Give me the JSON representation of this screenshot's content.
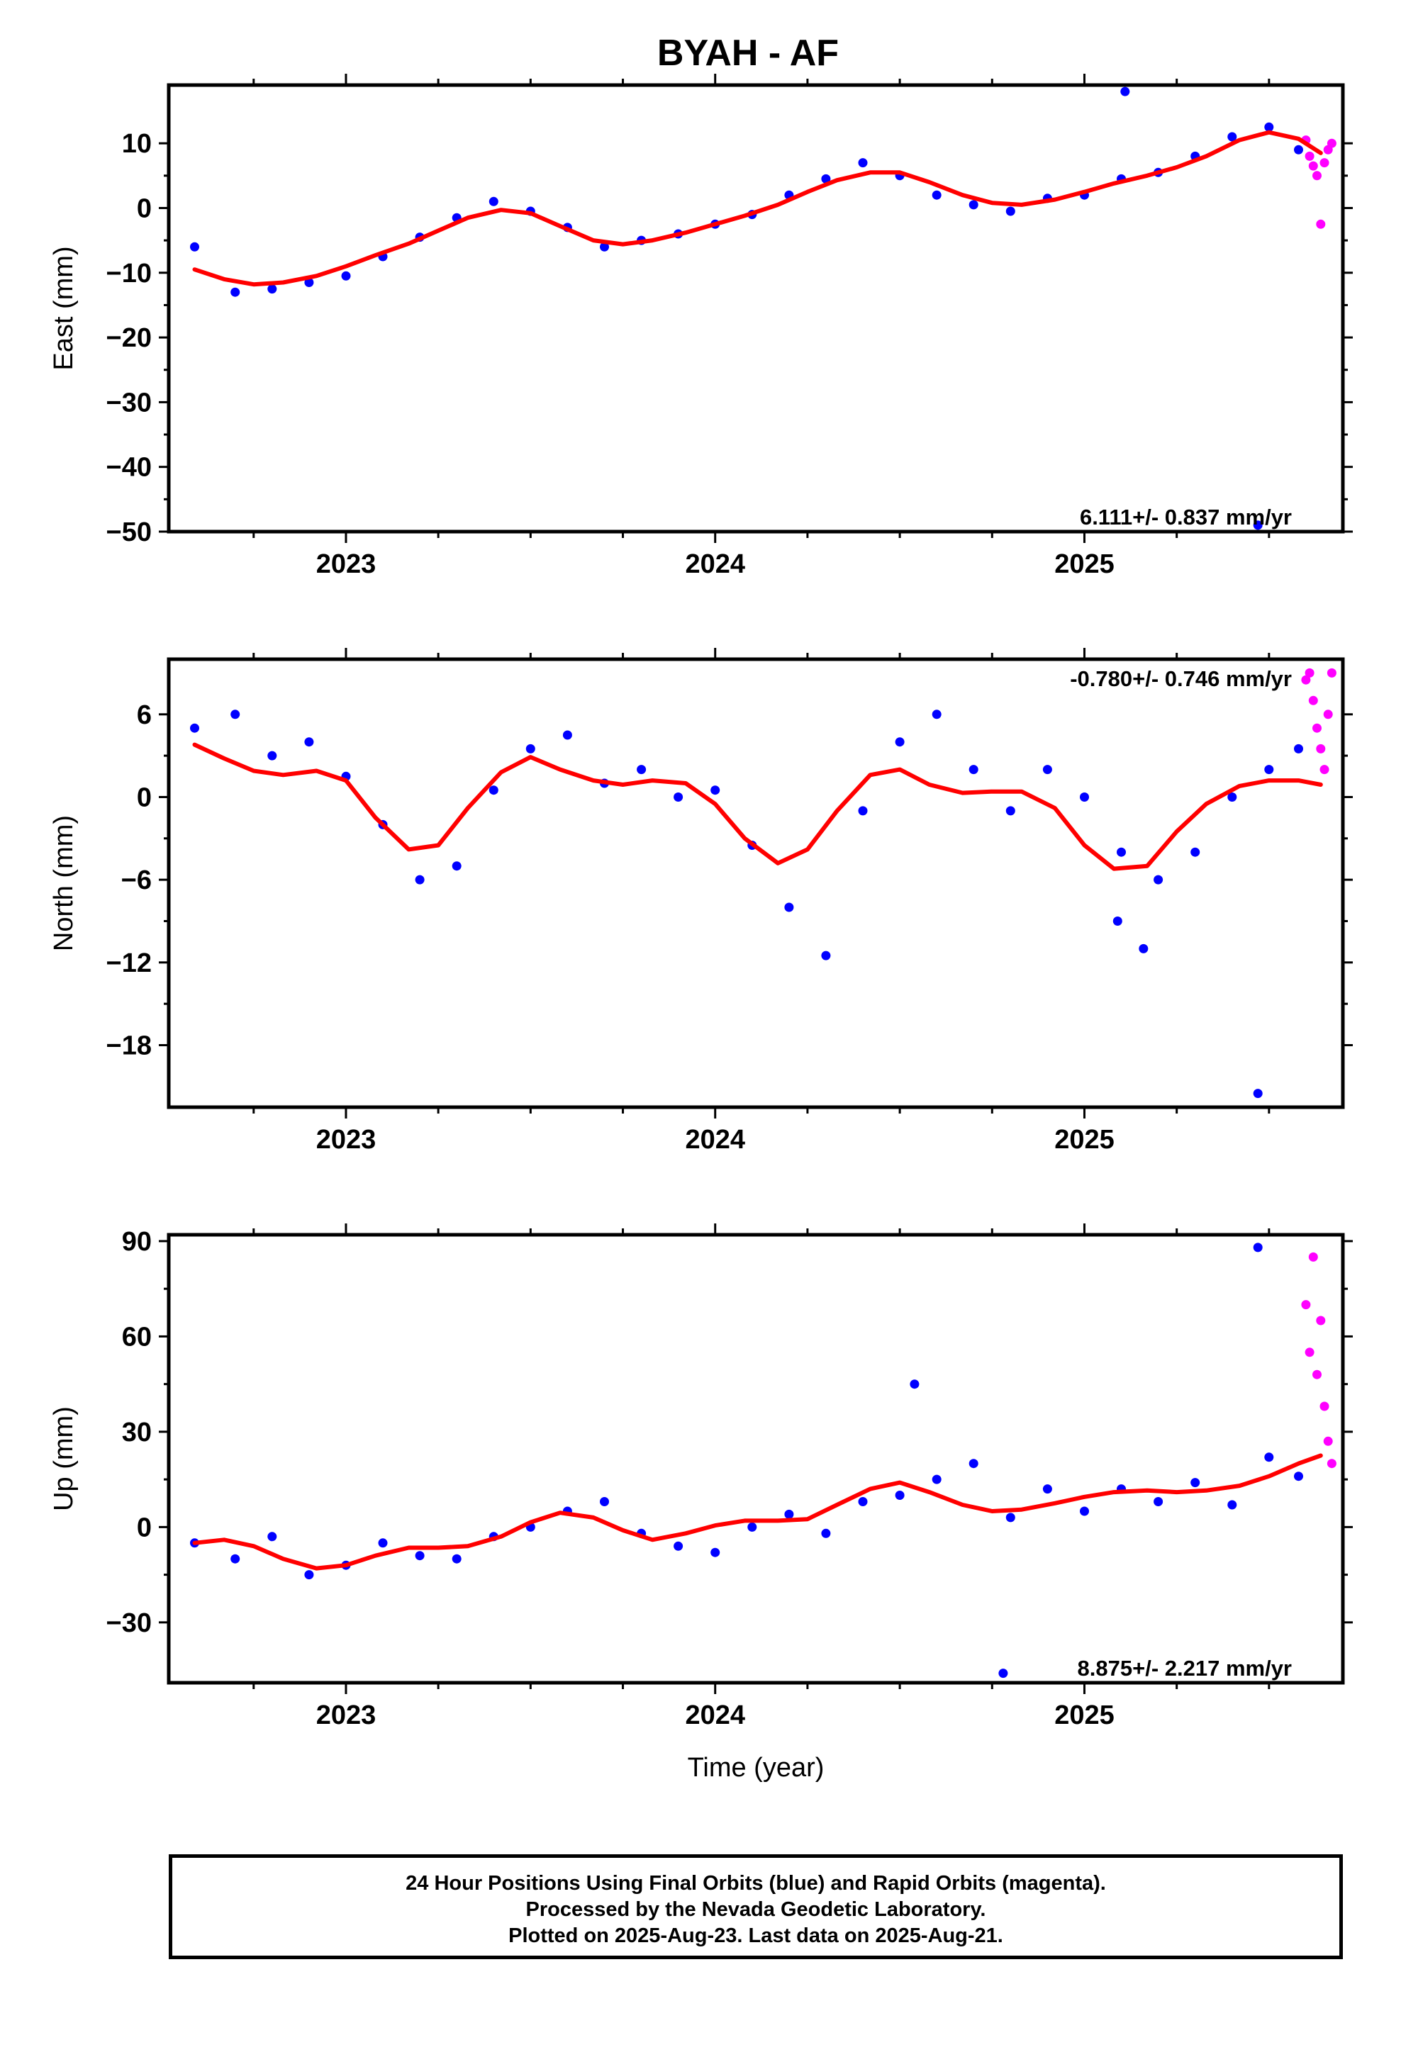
{
  "title": "BYAH - AF",
  "colors": {
    "final": "#0000ff",
    "rapid": "#ff00ff",
    "model": "#ff0000"
  },
  "footer": {
    "line1": "24 Hour Positions Using Final Orbits (blue) and Rapid Orbits (magenta).",
    "line2": "Processed by the Nevada Geodetic Laboratory.",
    "line3": "Plotted on 2025-Aug-23. Last data on 2025-Aug-21."
  },
  "chart_data": [
    {
      "type": "scatter",
      "title": "BYAH - AF",
      "ylabel": "East (mm)",
      "xlabel": "",
      "xlim": [
        2022.52,
        2025.7
      ],
      "ylim": [
        -50,
        19
      ],
      "yticks": [
        -50,
        -40,
        -30,
        -20,
        -10,
        0,
        10
      ],
      "xticks": [
        2023,
        2024,
        2025
      ],
      "rate_label": "6.111+/- 0.837 mm/yr",
      "rate_position": "bottom-right",
      "series": [
        {
          "kind": "model",
          "x": [
            2022.59,
            2022.67,
            2022.75,
            2022.83,
            2022.92,
            2023.0,
            2023.08,
            2023.17,
            2023.25,
            2023.33,
            2023.42,
            2023.5,
            2023.58,
            2023.67,
            2023.75,
            2023.83,
            2023.92,
            2024.0,
            2024.08,
            2024.17,
            2024.25,
            2024.33,
            2024.42,
            2024.5,
            2024.58,
            2024.67,
            2024.75,
            2024.83,
            2024.92,
            2025.0,
            2025.08,
            2025.17,
            2025.25,
            2025.33,
            2025.42,
            2025.5,
            2025.58,
            2025.64
          ],
          "y": [
            -9.5,
            -11.0,
            -11.8,
            -11.5,
            -10.5,
            -9.0,
            -7.3,
            -5.5,
            -3.5,
            -1.5,
            -0.3,
            -0.8,
            -2.8,
            -5.0,
            -5.6,
            -5.0,
            -3.8,
            -2.5,
            -1.2,
            0.5,
            2.5,
            4.3,
            5.5,
            5.5,
            4.0,
            2.0,
            0.8,
            0.5,
            1.3,
            2.5,
            3.8,
            5.0,
            6.3,
            8.0,
            10.5,
            11.7,
            10.7,
            8.5
          ]
        },
        {
          "kind": "final",
          "x": [
            2022.59,
            2022.7,
            2022.8,
            2022.9,
            2023.0,
            2023.1,
            2023.2,
            2023.3,
            2023.4,
            2023.5,
            2023.6,
            2023.7,
            2023.8,
            2023.9,
            2024.0,
            2024.1,
            2024.2,
            2024.3,
            2024.4,
            2024.5,
            2024.6,
            2024.7,
            2024.8,
            2024.9,
            2025.0,
            2025.1,
            2025.2,
            2025.3,
            2025.4,
            2025.5,
            2025.58,
            2025.11,
            2025.47
          ],
          "y": [
            -6.0,
            -13.0,
            -12.5,
            -11.5,
            -10.5,
            -7.5,
            -4.5,
            -1.5,
            1.0,
            -0.5,
            -3.0,
            -6.0,
            -5.0,
            -4.0,
            -2.5,
            -1.0,
            2.0,
            4.5,
            7.0,
            5.0,
            2.0,
            0.5,
            -0.5,
            1.5,
            2.0,
            4.5,
            5.5,
            8.0,
            11.0,
            12.5,
            9.0,
            18.0,
            -49.0
          ]
        },
        {
          "kind": "rapid",
          "x": [
            2025.6,
            2025.61,
            2025.62,
            2025.63,
            2025.64,
            2025.65,
            2025.66,
            2025.67
          ],
          "y": [
            10.5,
            8.0,
            6.5,
            5.0,
            -2.5,
            7.0,
            9.0,
            10.0
          ]
        }
      ]
    },
    {
      "type": "scatter",
      "ylabel": "North (mm)",
      "xlabel": "",
      "xlim": [
        2022.52,
        2025.7
      ],
      "ylim": [
        -22.5,
        10
      ],
      "yticks": [
        -18,
        -12,
        -6,
        0,
        6
      ],
      "xticks": [
        2023,
        2024,
        2025
      ],
      "rate_label": "-0.780+/- 0.746 mm/yr",
      "rate_position": "top-right",
      "series": [
        {
          "kind": "model",
          "x": [
            2022.59,
            2022.67,
            2022.75,
            2022.83,
            2022.92,
            2023.0,
            2023.08,
            2023.17,
            2023.25,
            2023.33,
            2023.42,
            2023.5,
            2023.58,
            2023.67,
            2023.75,
            2023.83,
            2023.92,
            2024.0,
            2024.08,
            2024.17,
            2024.25,
            2024.33,
            2024.42,
            2024.5,
            2024.58,
            2024.67,
            2024.75,
            2024.83,
            2024.92,
            2025.0,
            2025.08,
            2025.17,
            2025.25,
            2025.33,
            2025.42,
            2025.5,
            2025.58,
            2025.64
          ],
          "y": [
            3.8,
            2.8,
            1.9,
            1.6,
            1.9,
            1.2,
            -1.5,
            -3.8,
            -3.5,
            -0.8,
            1.8,
            2.9,
            2.0,
            1.2,
            0.9,
            1.2,
            1.0,
            -0.5,
            -3.0,
            -4.8,
            -3.8,
            -1.0,
            1.6,
            2.0,
            0.9,
            0.3,
            0.4,
            0.4,
            -0.8,
            -3.5,
            -5.2,
            -5.0,
            -2.5,
            -0.5,
            0.8,
            1.2,
            1.2,
            0.9
          ]
        },
        {
          "kind": "final",
          "x": [
            2022.59,
            2022.7,
            2022.8,
            2022.9,
            2023.0,
            2023.1,
            2023.2,
            2023.3,
            2023.4,
            2023.5,
            2023.6,
            2023.7,
            2023.8,
            2023.9,
            2024.0,
            2024.1,
            2024.2,
            2024.3,
            2024.4,
            2024.5,
            2024.6,
            2024.7,
            2024.8,
            2024.9,
            2025.0,
            2025.1,
            2025.2,
            2025.3,
            2025.4,
            2025.5,
            2025.58,
            2025.09,
            2025.16,
            2025.47
          ],
          "y": [
            5.0,
            6.0,
            3.0,
            4.0,
            1.5,
            -2.0,
            -6.0,
            -5.0,
            0.5,
            3.5,
            4.5,
            1.0,
            2.0,
            0.0,
            0.5,
            -3.5,
            -8.0,
            -11.5,
            -1.0,
            4.0,
            6.0,
            2.0,
            -1.0,
            2.0,
            0.0,
            -4.0,
            -6.0,
            -4.0,
            0.0,
            2.0,
            3.5,
            -9.0,
            -11.0,
            -21.5
          ]
        },
        {
          "kind": "rapid",
          "x": [
            2025.6,
            2025.61,
            2025.62,
            2025.63,
            2025.64,
            2025.65,
            2025.66,
            2025.67
          ],
          "y": [
            8.5,
            9.0,
            7.0,
            5.0,
            3.5,
            2.0,
            6.0,
            9.0
          ]
        }
      ]
    },
    {
      "type": "scatter",
      "ylabel": "Up (mm)",
      "xlabel": "Time (year)",
      "xlim": [
        2022.52,
        2025.7
      ],
      "ylim": [
        -49,
        92
      ],
      "yticks": [
        -30,
        0,
        30,
        60,
        90
      ],
      "xticks": [
        2023,
        2024,
        2025
      ],
      "rate_label": "8.875+/- 2.217 mm/yr",
      "rate_position": "bottom-right",
      "series": [
        {
          "kind": "model",
          "x": [
            2022.59,
            2022.67,
            2022.75,
            2022.83,
            2022.92,
            2023.0,
            2023.08,
            2023.17,
            2023.25,
            2023.33,
            2023.42,
            2023.5,
            2023.58,
            2023.67,
            2023.75,
            2023.83,
            2023.92,
            2024.0,
            2024.08,
            2024.17,
            2024.25,
            2024.33,
            2024.42,
            2024.5,
            2024.58,
            2024.67,
            2024.75,
            2024.83,
            2024.92,
            2025.0,
            2025.08,
            2025.17,
            2025.25,
            2025.33,
            2025.42,
            2025.5,
            2025.58,
            2025.64
          ],
          "y": [
            -5.0,
            -4.0,
            -6.0,
            -10.0,
            -13.0,
            -12.0,
            -9.0,
            -6.5,
            -6.5,
            -6.0,
            -3.0,
            1.5,
            4.5,
            3.0,
            -1.0,
            -4.0,
            -2.0,
            0.5,
            2.0,
            2.0,
            2.5,
            7.0,
            12.0,
            14.0,
            11.0,
            7.0,
            5.0,
            5.5,
            7.5,
            9.5,
            11.0,
            11.5,
            11.0,
            11.5,
            13.0,
            16.0,
            20.0,
            22.5
          ]
        },
        {
          "kind": "final",
          "x": [
            2022.59,
            2022.7,
            2022.8,
            2022.9,
            2023.0,
            2023.1,
            2023.2,
            2023.3,
            2023.4,
            2023.5,
            2023.6,
            2023.7,
            2023.8,
            2023.9,
            2024.0,
            2024.1,
            2024.2,
            2024.3,
            2024.4,
            2024.5,
            2024.6,
            2024.7,
            2024.8,
            2024.9,
            2025.0,
            2025.1,
            2025.2,
            2025.3,
            2025.4,
            2025.5,
            2025.58,
            2024.54,
            2025.47,
            2024.78
          ],
          "y": [
            -5.0,
            -10.0,
            -3.0,
            -15.0,
            -12.0,
            -5.0,
            -9.0,
            -10.0,
            -3.0,
            0.0,
            5.0,
            8.0,
            -2.0,
            -6.0,
            -8.0,
            0.0,
            4.0,
            -2.0,
            8.0,
            10.0,
            15.0,
            20.0,
            3.0,
            12.0,
            5.0,
            12.0,
            8.0,
            14.0,
            7.0,
            22.0,
            16.0,
            45.0,
            88.0,
            -46.0
          ]
        },
        {
          "kind": "rapid",
          "x": [
            2025.6,
            2025.61,
            2025.62,
            2025.63,
            2025.64,
            2025.65,
            2025.66,
            2025.67
          ],
          "y": [
            70.0,
            55.0,
            85.0,
            48.0,
            65.0,
            38.0,
            27.0,
            20.0
          ]
        }
      ]
    }
  ]
}
